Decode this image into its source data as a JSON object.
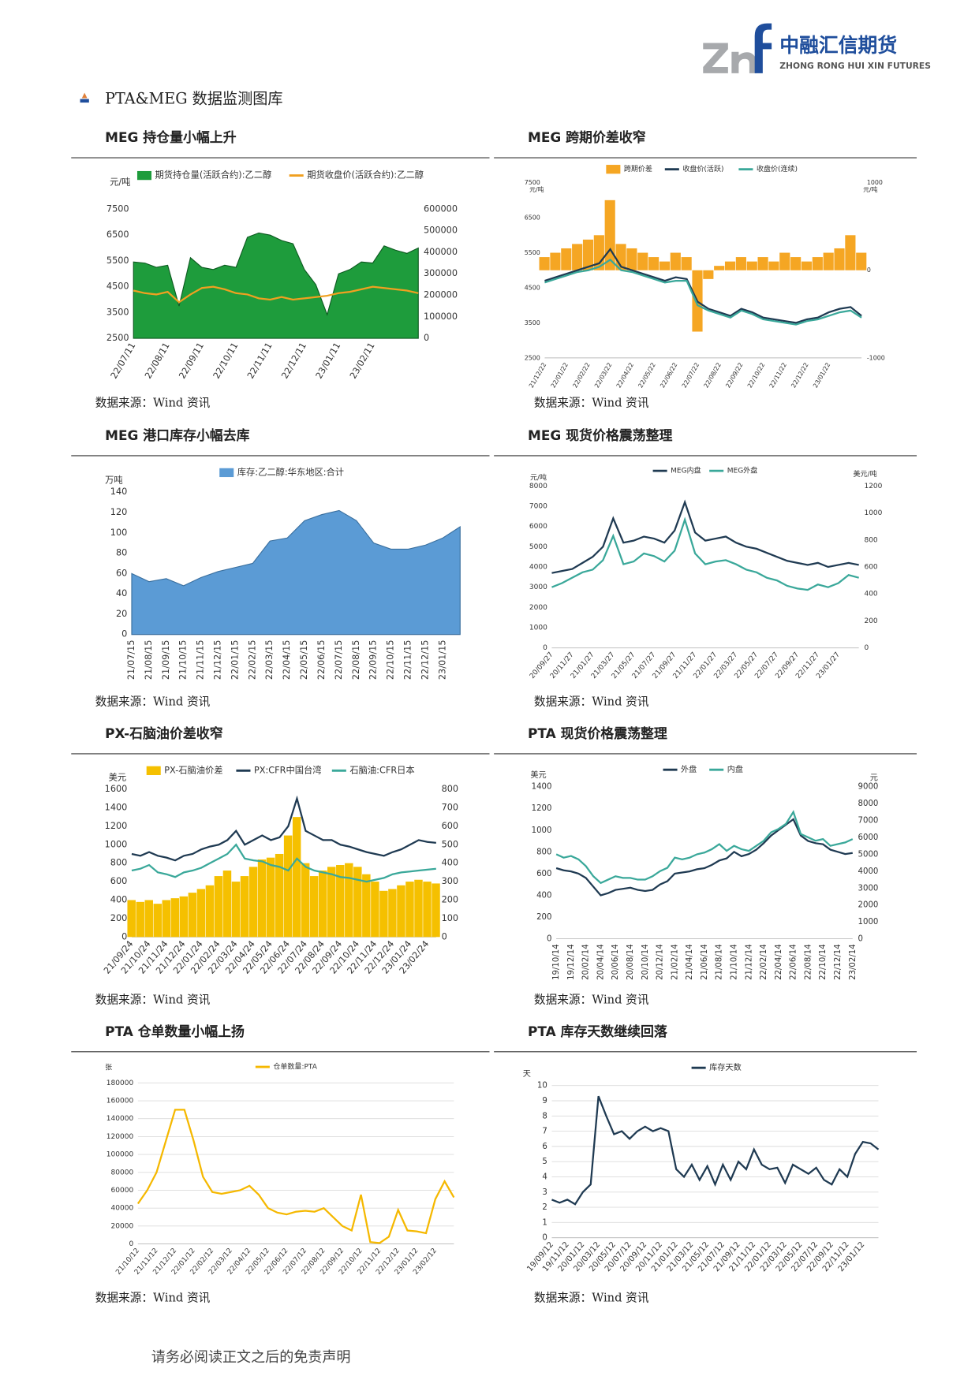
{
  "header": {
    "company_cn": "中融汇信期货",
    "company_en": "ZHONG RONG HUI XIN FUTURES"
  },
  "section_title": "PTA&MEG 数据监测图库",
  "footer": "请务必阅读正文之后的免责声明",
  "chart_data": [
    {
      "type": "line",
      "title": "MEG 持仓量小幅上升",
      "source": "数据来源：Wind 资讯",
      "ylabel": "元/吨",
      "categories": [
        "22/07/11",
        null,
        null,
        "22/08/11",
        null,
        null,
        "22/09/11",
        null,
        null,
        "22/10/11",
        null,
        null,
        "22/11/11",
        null,
        null,
        "22/12/11",
        null,
        null,
        "23/01/11",
        null,
        null,
        "23/02/11",
        null,
        null,
        null,
        null
      ],
      "series": [
        {
          "name": "期货持仓量(活跃合约):乙二醇",
          "type": "area",
          "axis": "y2",
          "color": "#1e9c3c",
          "values": [
            355000,
            350000,
            330000,
            340000,
            150000,
            375000,
            330000,
            320000,
            340000,
            330000,
            470000,
            490000,
            480000,
            455000,
            440000,
            320000,
            250000,
            110000,
            300000,
            320000,
            355000,
            350000,
            430000,
            410000,
            395000,
            420000
          ]
        },
        {
          "name": "期货收盘价(活跃合约):乙二醇",
          "type": "line",
          "color": "#f0a020",
          "values": [
            4350,
            4250,
            4200,
            4300,
            3900,
            4200,
            4450,
            4500,
            4400,
            4250,
            4200,
            4050,
            4000,
            4100,
            4000,
            4050,
            4100,
            4150,
            4250,
            4300,
            4400,
            4500,
            4450,
            4400,
            4350,
            4250
          ]
        }
      ],
      "ylim": [
        2500,
        7500
      ],
      "yticks": [
        2500,
        3500,
        4500,
        5500,
        6500,
        7500
      ],
      "y2lim": [
        0,
        600000
      ],
      "y2ticks": [
        0,
        100000,
        200000,
        300000,
        400000,
        500000,
        600000
      ],
      "grid": false
    },
    {
      "type": "line",
      "title": "MEG 跨期价差收窄",
      "source": "数据来源：Wind 资讯",
      "ylabel": "元/吨",
      "y2label": "元/吨",
      "categories": [
        "21/12/22",
        null,
        "22/01/22",
        null,
        "22/02/22",
        null,
        "22/03/22",
        null,
        "22/04/22",
        null,
        "22/05/22",
        null,
        "22/06/22",
        null,
        "22/07/22",
        null,
        "22/08/22",
        null,
        "22/09/22",
        null,
        "22/10/22",
        null,
        "22/11/22",
        null,
        "22/12/22",
        null,
        "23/01/22",
        null,
        null,
        null
      ],
      "series": [
        {
          "name": "跨期价差",
          "type": "bar",
          "axis": "y2",
          "color": "#f5a623",
          "values": [
            150,
            200,
            250,
            300,
            350,
            400,
            800,
            300,
            250,
            200,
            150,
            100,
            200,
            150,
            -700,
            -100,
            50,
            100,
            150,
            100,
            150,
            100,
            200,
            150,
            100,
            150,
            200,
            250,
            400,
            200
          ]
        },
        {
          "name": "收盘价(活跃)",
          "type": "line",
          "color": "#1f3a52",
          "values": [
            4700,
            4800,
            4900,
            5000,
            5100,
            5200,
            5600,
            5100,
            5000,
            4900,
            4800,
            4700,
            4800,
            4750,
            4100,
            3900,
            3800,
            3700,
            3900,
            3800,
            3650,
            3600,
            3550,
            3500,
            3600,
            3650,
            3800,
            3900,
            3950,
            3700
          ]
        },
        {
          "name": "收盘价(连续)",
          "type": "line",
          "color": "#3aa89a",
          "values": [
            4650,
            4750,
            4850,
            4950,
            5000,
            5100,
            5300,
            5000,
            4950,
            4850,
            4750,
            4650,
            4700,
            4700,
            4000,
            3850,
            3750,
            3650,
            3850,
            3750,
            3600,
            3550,
            3500,
            3450,
            3550,
            3600,
            3700,
            3800,
            3850,
            3650
          ]
        }
      ],
      "ylim": [
        2500,
        7500
      ],
      "yticks": [
        2500,
        3500,
        4500,
        5500,
        6500,
        7500
      ],
      "y2lim": [
        -1000,
        1000
      ],
      "y2ticks": [
        -1000,
        0,
        1000
      ],
      "grid": false
    },
    {
      "type": "area",
      "title": "MEG 港口库存小幅去库",
      "source": "数据来源：Wind 资讯",
      "ylabel": "万吨",
      "categories": [
        "21/07/15",
        "21/08/15",
        "21/09/15",
        "21/10/15",
        "21/11/15",
        "21/12/15",
        "22/01/15",
        "22/02/15",
        "22/03/15",
        "22/04/15",
        "22/05/15",
        "22/06/15",
        "22/07/15",
        "22/08/15",
        "22/09/15",
        "22/10/15",
        "22/11/15",
        "22/12/15",
        "23/01/15",
        null
      ],
      "series": [
        {
          "name": "库存:乙二醇:华东地区:合计",
          "type": "area",
          "color": "#5b9bd5",
          "values": [
            60,
            52,
            55,
            48,
            56,
            62,
            66,
            70,
            92,
            95,
            112,
            118,
            122,
            112,
            90,
            84,
            84,
            88,
            95,
            106
          ]
        }
      ],
      "ylim": [
        0,
        140
      ],
      "yticks": [
        0,
        20,
        40,
        60,
        80,
        100,
        120,
        140
      ],
      "grid": false
    },
    {
      "type": "line",
      "title": "MEG 现货价格震荡整理",
      "source": "数据来源：Wind 资讯",
      "ylabel": "元/吨",
      "y2label": "美元/吨",
      "categories": [
        "20/09/27",
        null,
        "20/11/27",
        null,
        "21/01/27",
        null,
        "21/03/27",
        null,
        "21/05/27",
        null,
        "21/07/27",
        null,
        "21/09/27",
        null,
        "21/11/27",
        null,
        "22/01/27",
        null,
        "22/03/27",
        null,
        "22/05/27",
        null,
        "22/07/27",
        null,
        "22/09/27",
        null,
        "22/11/27",
        null,
        "23/01/27",
        null,
        null
      ],
      "series": [
        {
          "name": "MEG内盘",
          "type": "line",
          "color": "#1f3a52",
          "values": [
            3700,
            3800,
            3900,
            4200,
            4500,
            5000,
            6400,
            5200,
            5300,
            5500,
            5400,
            5200,
            5800,
            7200,
            5700,
            5300,
            5400,
            5500,
            5200,
            5000,
            4900,
            4700,
            4500,
            4300,
            4200,
            4100,
            4200,
            4000,
            4100,
            4200,
            4100
          ]
        },
        {
          "name": "MEG外盘",
          "type": "line",
          "axis": "y2",
          "color": "#3aa89a",
          "values": [
            450,
            480,
            520,
            560,
            580,
            650,
            830,
            620,
            640,
            700,
            680,
            640,
            720,
            950,
            700,
            620,
            640,
            650,
            620,
            580,
            560,
            520,
            500,
            460,
            440,
            430,
            470,
            450,
            480,
            540,
            520
          ]
        }
      ],
      "ylim": [
        0,
        8000
      ],
      "yticks": [
        0,
        1000,
        2000,
        3000,
        4000,
        5000,
        6000,
        7000,
        8000
      ],
      "y2lim": [
        0,
        1200
      ],
      "y2ticks": [
        0,
        200,
        400,
        600,
        800,
        1000,
        1200
      ],
      "grid": false
    },
    {
      "type": "line",
      "title": "PX-石脑油价差收窄",
      "source": "数据来源：Wind 资讯",
      "ylabel": "美元",
      "categories": [
        "21/09/24",
        null,
        "21/10/24",
        null,
        "21/11/24",
        null,
        "21/12/24",
        null,
        "22/01/24",
        null,
        "22/02/24",
        null,
        "22/03/24",
        null,
        "22/04/24",
        null,
        "22/05/24",
        null,
        "22/06/24",
        null,
        "22/07/24",
        null,
        "22/08/24",
        null,
        "22/09/24",
        null,
        "22/10/24",
        null,
        "22/11/24",
        null,
        "22/12/24",
        null,
        "23/01/24",
        null,
        "23/02/24",
        null
      ],
      "series": [
        {
          "name": "PX-石脑油价差",
          "type": "bar",
          "axis": "y2",
          "color": "#f5c000",
          "values": [
            200,
            190,
            200,
            180,
            200,
            210,
            220,
            240,
            260,
            280,
            330,
            360,
            300,
            330,
            380,
            420,
            430,
            450,
            550,
            650,
            400,
            330,
            360,
            380,
            390,
            400,
            380,
            340,
            300,
            250,
            260,
            280,
            300,
            310,
            300,
            290
          ]
        },
        {
          "name": "PX:CFR中国台湾",
          "type": "line",
          "color": "#1f3a52",
          "values": [
            900,
            880,
            920,
            880,
            860,
            830,
            880,
            900,
            950,
            980,
            1000,
            1050,
            1150,
            1000,
            1050,
            1100,
            1050,
            1080,
            1200,
            1500,
            1150,
            1100,
            1050,
            1050,
            1000,
            980,
            950,
            920,
            900,
            880,
            920,
            950,
            1000,
            1050,
            1030,
            1020
          ]
        },
        {
          "name": "石脑油:CFR日本",
          "type": "line",
          "color": "#3aa89a",
          "values": [
            720,
            740,
            780,
            700,
            680,
            650,
            700,
            720,
            750,
            800,
            850,
            900,
            1000,
            850,
            830,
            820,
            780,
            760,
            720,
            850,
            760,
            720,
            700,
            680,
            650,
            640,
            620,
            600,
            620,
            640,
            680,
            700,
            710,
            720,
            730,
            740
          ]
        }
      ],
      "ylim": [
        0,
        1600
      ],
      "yticks": [
        0,
        200,
        400,
        600,
        800,
        1000,
        1200,
        1400,
        1600
      ],
      "y2lim": [
        0,
        800
      ],
      "y2ticks": [
        0,
        100,
        200,
        300,
        400,
        500,
        600,
        700,
        800
      ],
      "grid": false
    },
    {
      "type": "line",
      "title": "PTA 现货价格震荡整理",
      "source": "数据来源：Wind 资讯",
      "ylabel": "美元",
      "y2label": "元",
      "categories": [
        "19/10/14",
        null,
        "19/12/14",
        null,
        "20/02/14",
        null,
        "20/04/14",
        null,
        "20/06/14",
        null,
        "20/08/14",
        null,
        "20/10/14",
        null,
        "20/12/14",
        null,
        "21/02/14",
        null,
        "21/04/14",
        null,
        "21/06/14",
        null,
        "21/08/14",
        null,
        "21/10/14",
        null,
        "21/12/14",
        null,
        "22/02/14",
        null,
        "22/04/14",
        null,
        "22/06/14",
        null,
        "22/08/14",
        null,
        "22/10/14",
        null,
        "22/12/14",
        null,
        "23/02/14"
      ],
      "series": [
        {
          "name": "外盘",
          "type": "line",
          "color": "#1f3a52",
          "values": [
            650,
            630,
            620,
            600,
            560,
            480,
            400,
            420,
            450,
            460,
            470,
            450,
            440,
            450,
            500,
            530,
            600,
            610,
            620,
            640,
            650,
            680,
            720,
            740,
            800,
            760,
            780,
            820,
            880,
            950,
            1000,
            1050,
            1100,
            950,
            900,
            880,
            870,
            820,
            800,
            780,
            790
          ]
        },
        {
          "name": "内盘",
          "type": "line",
          "axis": "y2",
          "color": "#3aa89a",
          "values": [
            5000,
            4800,
            4900,
            4700,
            4300,
            3700,
            3300,
            3500,
            3700,
            3600,
            3600,
            3500,
            3500,
            3700,
            4000,
            4200,
            4800,
            4700,
            4800,
            5000,
            5100,
            5300,
            5600,
            5200,
            5500,
            5300,
            5200,
            5500,
            5800,
            6300,
            6500,
            6800,
            7500,
            6200,
            6000,
            5800,
            5900,
            5500,
            5600,
            5700,
            5900
          ]
        }
      ],
      "ylim": [
        0,
        1400
      ],
      "yticks": [
        0,
        200,
        400,
        600,
        800,
        1000,
        1200,
        1400
      ],
      "y2lim": [
        0,
        9000
      ],
      "y2ticks": [
        0,
        1000,
        2000,
        3000,
        4000,
        5000,
        6000,
        7000,
        8000,
        9000
      ],
      "grid": false
    },
    {
      "type": "line",
      "title": "PTA 仓单数量小幅上扬",
      "source": "数据来源：Wind 资讯",
      "ylabel": "张",
      "categories": [
        "21/10/12",
        null,
        "21/11/12",
        null,
        "21/12/12",
        null,
        "22/01/12",
        null,
        "22/02/12",
        null,
        "22/03/12",
        null,
        "22/04/12",
        null,
        "22/05/12",
        null,
        "22/06/12",
        null,
        "22/07/12",
        null,
        "22/08/12",
        null,
        "22/09/12",
        null,
        "22/10/12",
        null,
        "22/11/12",
        null,
        "22/12/12",
        null,
        "23/01/12",
        null,
        "23/02/12",
        null,
        null
      ],
      "series": [
        {
          "name": "仓单数量:PTA",
          "type": "line",
          "color": "#f5b800",
          "values": [
            45000,
            60000,
            80000,
            115000,
            150000,
            150000,
            115000,
            75000,
            58000,
            56000,
            58000,
            60000,
            65000,
            55000,
            40000,
            35000,
            33000,
            36000,
            37000,
            36000,
            40000,
            30000,
            20000,
            15000,
            55000,
            2000,
            1000,
            8000,
            38000,
            15000,
            14000,
            12000,
            50000,
            70000,
            52000
          ]
        }
      ],
      "ylim": [
        0,
        180000
      ],
      "yticks": [
        0,
        20000,
        40000,
        60000,
        80000,
        100000,
        120000,
        140000,
        160000,
        180000
      ],
      "grid": true
    },
    {
      "type": "line",
      "title": "PTA 库存天数继续回落",
      "source": "数据来源：Wind 资讯",
      "ylabel": "天",
      "categories": [
        "19/09/12",
        null,
        "19/11/12",
        null,
        "20/01/12",
        null,
        "20/03/12",
        null,
        "20/05/12",
        null,
        "20/07/12",
        null,
        "20/09/12",
        null,
        "20/11/12",
        null,
        "21/01/12",
        null,
        "21/03/12",
        null,
        "21/05/12",
        null,
        "21/07/12",
        null,
        "21/09/12",
        null,
        "21/11/12",
        null,
        "22/01/12",
        null,
        "22/03/12",
        null,
        "22/05/12",
        null,
        "22/07/12",
        null,
        "22/09/12",
        null,
        "22/11/12",
        null,
        "23/01/12",
        null,
        null
      ],
      "series": [
        {
          "name": "库存天数",
          "type": "line",
          "color": "#1f3a52",
          "values": [
            2.5,
            2.3,
            2.5,
            2.2,
            3.0,
            3.5,
            9.3,
            8.0,
            6.8,
            7.0,
            6.5,
            7.0,
            7.3,
            7.0,
            7.2,
            7.0,
            4.5,
            4.0,
            4.8,
            3.8,
            4.7,
            3.5,
            4.8,
            3.8,
            5.0,
            4.5,
            5.8,
            4.8,
            4.5,
            4.6,
            3.6,
            4.8,
            4.5,
            4.2,
            4.6,
            3.8,
            3.5,
            4.5,
            4.0,
            5.5,
            6.3,
            6.2,
            5.8
          ]
        }
      ],
      "ylim": [
        0,
        10
      ],
      "yticks": [
        0,
        1,
        2,
        3,
        4,
        5,
        6,
        7,
        8,
        9,
        10
      ],
      "grid": true
    }
  ]
}
